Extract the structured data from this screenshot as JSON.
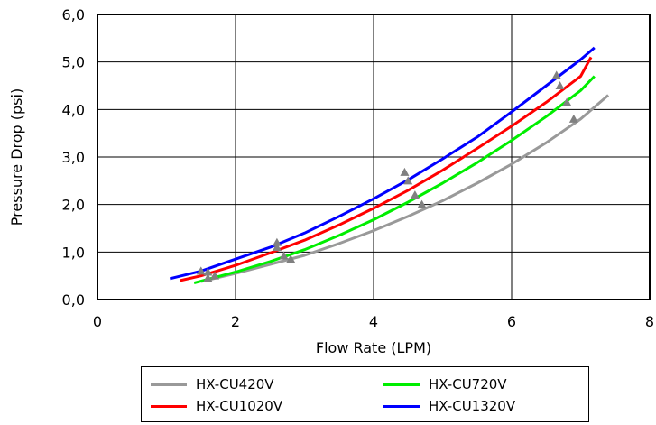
{
  "chart_data": {
    "type": "line",
    "title": "",
    "xlabel": "Flow Rate (LPM)",
    "ylabel": "Pressure Drop (psi)",
    "xlim": [
      0,
      8
    ],
    "ylim": [
      0,
      6
    ],
    "x_ticks": [
      "0",
      "2",
      "4",
      "6",
      "8"
    ],
    "y_ticks": [
      "0,0",
      "1,0",
      "2,0",
      "3,0",
      "4,0",
      "5,0",
      "6,0"
    ],
    "grid": true,
    "legend_position": "bottom",
    "series": [
      {
        "name": "HX-CU420V",
        "color": "#999999",
        "x": [
          1.5,
          2.0,
          2.5,
          3.0,
          3.5,
          4.0,
          4.5,
          5.0,
          5.5,
          6.0,
          6.5,
          7.0,
          7.4
        ],
        "values": [
          0.38,
          0.55,
          0.74,
          0.93,
          1.18,
          1.45,
          1.75,
          2.08,
          2.45,
          2.85,
          3.3,
          3.8,
          4.3
        ],
        "markers_x": [
          1.7,
          2.8,
          4.7,
          6.9
        ],
        "markers_y": [
          0.5,
          0.85,
          2.0,
          3.8
        ]
      },
      {
        "name": "HX-CU720V",
        "color": "#00ee00",
        "x": [
          1.4,
          2.0,
          2.5,
          3.0,
          3.5,
          4.0,
          4.5,
          5.0,
          5.5,
          6.0,
          6.5,
          7.0,
          7.2
        ],
        "values": [
          0.35,
          0.58,
          0.8,
          1.05,
          1.35,
          1.68,
          2.05,
          2.45,
          2.88,
          3.35,
          3.85,
          4.4,
          4.7
        ],
        "markers_x": [
          1.6,
          2.7,
          4.6,
          6.8
        ],
        "markers_y": [
          0.45,
          0.92,
          2.2,
          4.15
        ]
      },
      {
        "name": "HX-CU1020V",
        "color": "#ff0000",
        "x": [
          1.2,
          1.5,
          2.0,
          2.5,
          3.0,
          3.5,
          4.0,
          4.5,
          5.0,
          5.5,
          6.0,
          6.5,
          7.0,
          7.15
        ],
        "values": [
          0.4,
          0.5,
          0.72,
          0.98,
          1.25,
          1.57,
          1.92,
          2.3,
          2.72,
          3.18,
          3.65,
          4.15,
          4.7,
          5.1
        ],
        "markers_x": [
          1.6,
          2.6,
          4.5,
          6.7
        ],
        "markers_y": [
          0.58,
          1.1,
          2.5,
          4.5
        ]
      },
      {
        "name": "HX-CU1320V",
        "color": "#0000ff",
        "x": [
          1.05,
          1.5,
          2.0,
          2.5,
          3.0,
          3.5,
          4.0,
          4.5,
          5.0,
          5.5,
          6.0,
          6.5,
          7.0,
          7.2
        ],
        "values": [
          0.44,
          0.6,
          0.85,
          1.1,
          1.4,
          1.75,
          2.12,
          2.52,
          2.96,
          3.42,
          3.95,
          4.5,
          5.05,
          5.3
        ],
        "markers_x": [
          1.5,
          2.6,
          4.45,
          6.65
        ],
        "markers_y": [
          0.6,
          1.2,
          2.68,
          4.72
        ]
      }
    ]
  }
}
